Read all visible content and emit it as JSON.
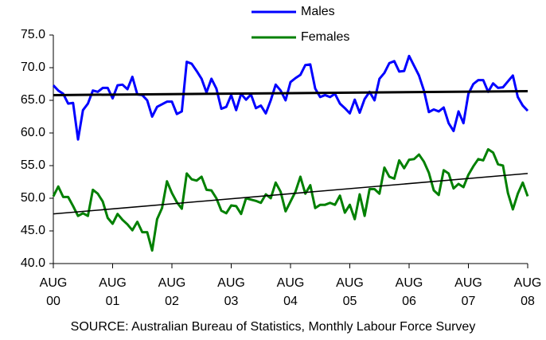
{
  "chart_data": {
    "type": "line",
    "source": "SOURCE:  Australian Bureau of Statistics, Monthly Labour Force Survey",
    "categories": [
      "AUG 00",
      null,
      null,
      null,
      null,
      null,
      null,
      null,
      null,
      null,
      null,
      null,
      "AUG 01",
      null,
      null,
      null,
      null,
      null,
      null,
      null,
      null,
      null,
      null,
      null,
      "AUG 02",
      null,
      null,
      null,
      null,
      null,
      null,
      null,
      null,
      null,
      null,
      null,
      "AUG 03",
      null,
      null,
      null,
      null,
      null,
      null,
      null,
      null,
      null,
      null,
      null,
      "AUG 04",
      null,
      null,
      null,
      null,
      null,
      null,
      null,
      null,
      null,
      null,
      null,
      "AUG 05",
      null,
      null,
      null,
      null,
      null,
      null,
      null,
      null,
      null,
      null,
      null,
      "AUG 06",
      null,
      null,
      null,
      null,
      null,
      null,
      null,
      null,
      null,
      null,
      null,
      "AUG 07",
      null,
      null,
      null,
      null,
      null,
      null,
      null,
      null,
      null,
      null,
      null,
      "AUG 08"
    ],
    "series": [
      {
        "name": "Males",
        "color": "#0000ff",
        "trend": [
          65.8,
          66.4
        ],
        "trend_color": "#000000",
        "values": [
          67.3,
          66.5,
          66.0,
          64.5,
          64.6,
          59.0,
          63.5,
          64.5,
          66.5,
          66.3,
          66.9,
          66.9,
          65.3,
          67.3,
          67.4,
          66.7,
          68.6,
          65.9,
          65.8,
          65.0,
          62.5,
          64.0,
          64.4,
          64.8,
          64.8,
          62.9,
          63.3,
          70.9,
          70.6,
          69.5,
          68.3,
          66.2,
          68.3,
          66.8,
          63.7,
          64.0,
          65.8,
          63.5,
          66.0,
          65.1,
          65.9,
          63.8,
          64.2,
          63.0,
          65.0,
          67.4,
          66.5,
          65.0,
          67.8,
          68.4,
          68.9,
          70.4,
          70.5,
          66.8,
          65.5,
          65.8,
          65.5,
          66.0,
          64.5,
          63.8,
          63.0,
          65.1,
          63.1,
          65.2,
          66.3,
          65.0,
          68.3,
          69.2,
          70.7,
          71.0,
          69.4,
          69.5,
          71.8,
          70.3,
          68.8,
          66.5,
          63.2,
          63.6,
          63.3,
          63.9,
          61.5,
          60.3,
          63.3,
          61.5,
          66.0,
          67.5,
          68.1,
          68.1,
          66.3,
          67.6,
          66.9,
          67.0,
          67.9,
          68.8,
          65.5,
          64.2,
          63.4
        ]
      },
      {
        "name": "Females",
        "color": "#008000",
        "trend": [
          47.6,
          53.8
        ],
        "trend_color": "#000000",
        "values": [
          50.3,
          51.8,
          50.2,
          50.2,
          48.8,
          47.3,
          47.7,
          47.3,
          51.3,
          50.7,
          49.5,
          47.0,
          46.1,
          47.6,
          46.7,
          46.0,
          45.1,
          46.4,
          44.8,
          44.8,
          42.0,
          46.8,
          48.5,
          52.6,
          50.8,
          49.4,
          48.4,
          53.8,
          52.9,
          52.7,
          53.3,
          51.3,
          51.2,
          50.0,
          48.1,
          47.7,
          48.9,
          48.8,
          47.6,
          50.0,
          49.8,
          49.6,
          49.3,
          50.6,
          50.0,
          52.4,
          51.0,
          48.0,
          49.5,
          51.0,
          53.3,
          50.7,
          52.0,
          48.5,
          49.0,
          49.0,
          49.3,
          49.0,
          50.4,
          47.8,
          49.0,
          46.8,
          50.6,
          47.3,
          51.4,
          51.4,
          50.7,
          54.7,
          53.3,
          53.0,
          55.8,
          54.6,
          55.9,
          56.0,
          56.7,
          55.6,
          53.9,
          51.2,
          50.5,
          54.3,
          53.8,
          51.5,
          52.2,
          51.7,
          53.6,
          54.9,
          56.0,
          55.8,
          57.5,
          57.0,
          55.2,
          55.0,
          50.8,
          48.3,
          50.7,
          52.4,
          50.3
        ]
      }
    ],
    "ylim": [
      40,
      75
    ],
    "yticks": [
      {
        "value": 40,
        "label": "40.0"
      },
      {
        "value": 45,
        "label": "45.0"
      },
      {
        "value": 50,
        "label": "50.0"
      },
      {
        "value": 55,
        "label": "55.0"
      },
      {
        "value": 60,
        "label": "60.0"
      },
      {
        "value": 65,
        "label": "65.0"
      },
      {
        "value": 70,
        "label": "70.0"
      },
      {
        "value": 75,
        "label": "75.0"
      }
    ],
    "grid": false,
    "legend": "top"
  }
}
